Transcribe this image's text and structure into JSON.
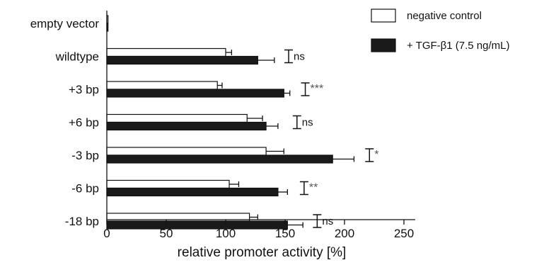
{
  "chart_data": {
    "type": "bar",
    "orientation": "horizontal",
    "title": "",
    "xlabel": "relative promoter activity [%]",
    "ylabel": "",
    "xlim": [
      0,
      260
    ],
    "xticks": [
      0,
      50,
      100,
      150,
      200,
      250
    ],
    "xtick_labels": [
      "0",
      "50",
      "100",
      "150",
      "200",
      "250"
    ],
    "categories": [
      "empty vector",
      "wildtype",
      "+3 bp",
      "+6 bp",
      "-3 bp",
      "-6 bp",
      "-18 bp"
    ],
    "series": [
      {
        "name": "negative control",
        "color": "#ffffff",
        "values": [
          1,
          100,
          93,
          118,
          134,
          103,
          120
        ],
        "errors": [
          0,
          5,
          4,
          13,
          15,
          8,
          7
        ]
      },
      {
        "name": "+ TGF-β1 (7.5 ng/mL)",
        "color": "#1a1a1a",
        "values": [
          1,
          127,
          149,
          134,
          190,
          144,
          152
        ],
        "errors": [
          0,
          14,
          5,
          10,
          18,
          8,
          13
        ]
      }
    ],
    "significance": [
      {
        "category": "wildtype",
        "label": "ns",
        "x": 153
      },
      {
        "category": "+3 bp",
        "label": "***",
        "x": 167
      },
      {
        "category": "+6 bp",
        "label": "ns",
        "x": 160
      },
      {
        "category": "-3 bp",
        "label": "*",
        "x": 221
      },
      {
        "category": "-6 bp",
        "label": "**",
        "x": 166
      },
      {
        "category": "-18 bp",
        "label": "ns",
        "x": 177
      }
    ],
    "legend_placement": "top-right",
    "grid": false
  }
}
